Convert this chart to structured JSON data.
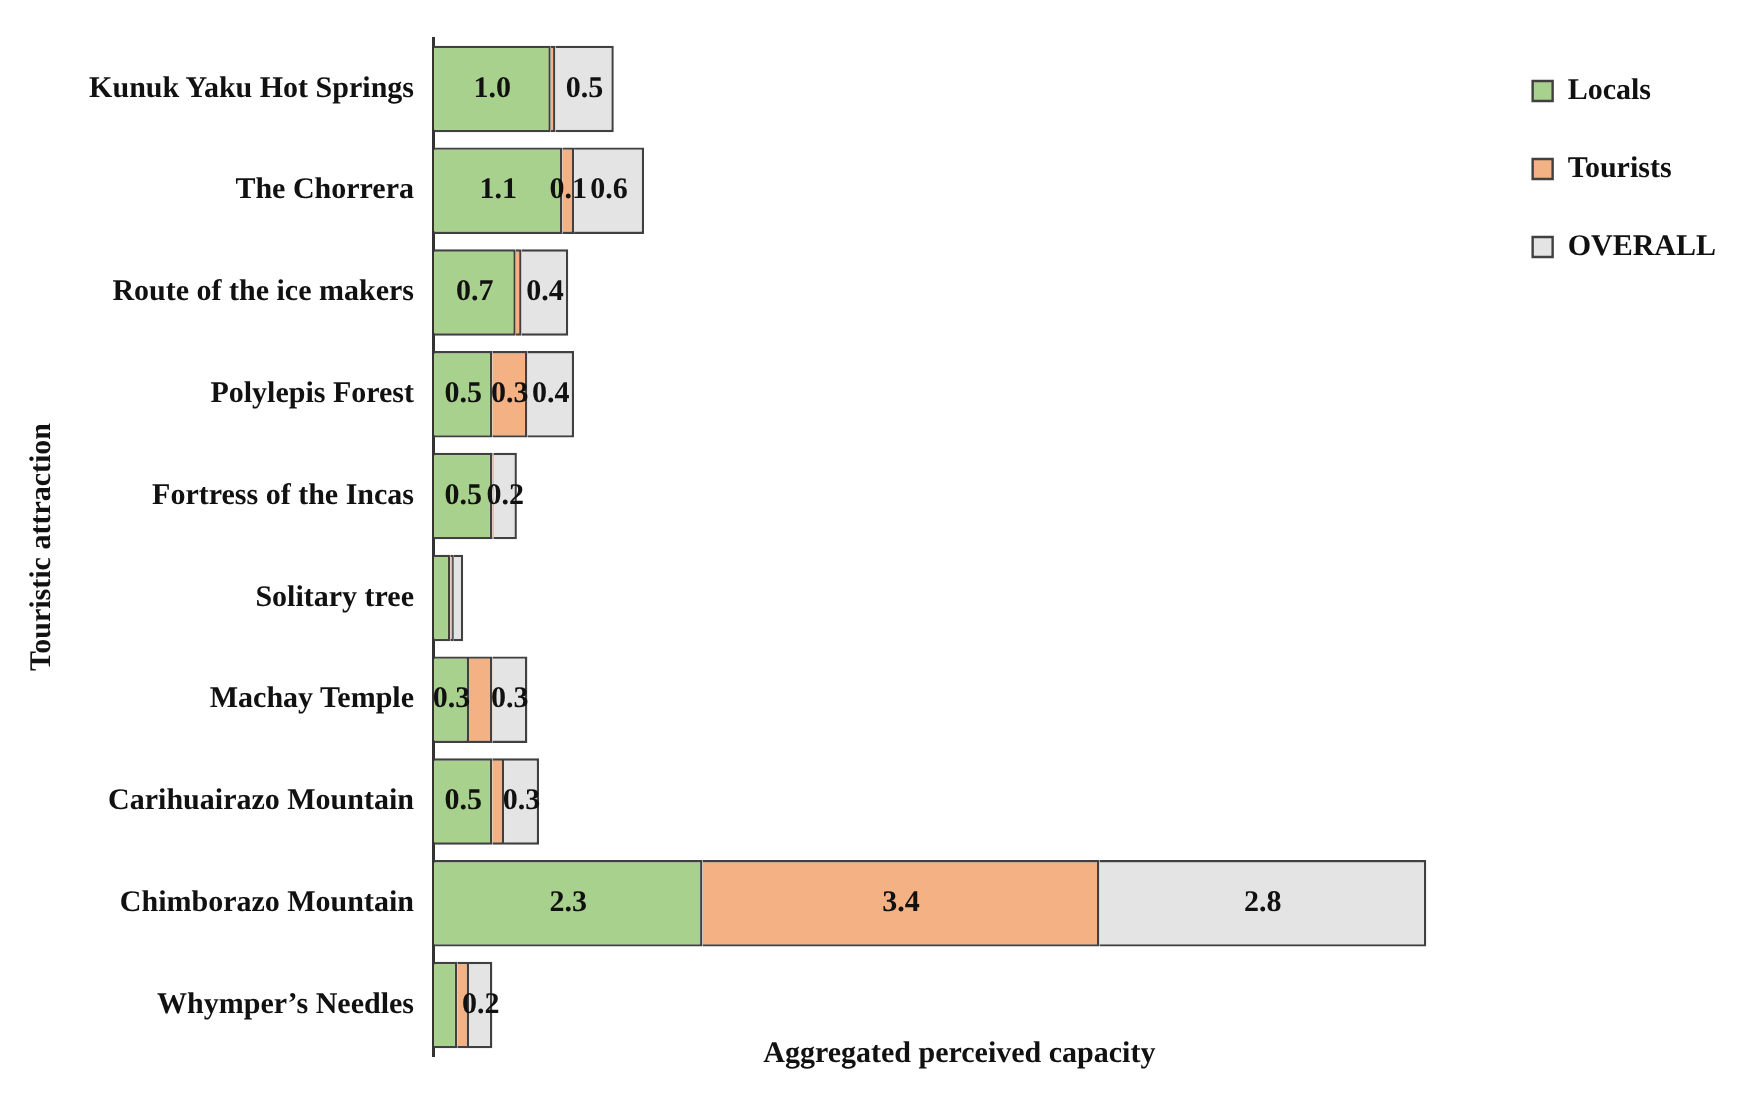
{
  "chart_data": {
    "type": "bar",
    "orientation": "horizontal",
    "stacked": true,
    "xlabel": "Aggregated perceived capacity",
    "ylabel": "Touristic attraction",
    "categories": [
      "Kunuk Yaku Hot Springs",
      "The Chorrera",
      "Route of the ice makers",
      "Polylepis Forest",
      "Fortress of the Incas",
      "Solitary tree",
      "Machay Temple",
      "Carihuairazo Mountain",
      "Chimborazo Mountain",
      "Whymper’s Needles"
    ],
    "series": [
      {
        "name": "Locals",
        "color": "#a9d18e",
        "values": [
          1.0,
          1.1,
          0.7,
          0.5,
          0.5,
          0.14,
          0.3,
          0.5,
          2.3,
          0.2
        ],
        "value_labels": [
          "1.0",
          "1.1",
          "0.7",
          "0.5",
          "0.5",
          null,
          "0.3",
          "0.5",
          "2.3",
          null
        ]
      },
      {
        "name": "Tourists",
        "color": "#f4b183",
        "values": [
          0.04,
          0.1,
          0.05,
          0.3,
          0.01,
          0.03,
          0.2,
          0.1,
          3.4,
          0.1
        ],
        "value_labels": [
          null,
          "0.1",
          null,
          "0.3",
          null,
          null,
          null,
          null,
          "3.4",
          null
        ]
      },
      {
        "name": "OVERALL",
        "color": "#e4e4e4",
        "values": [
          0.5,
          0.6,
          0.4,
          0.4,
          0.2,
          0.08,
          0.3,
          0.3,
          2.8,
          0.2
        ],
        "value_labels": [
          "0.5",
          "0.6",
          "0.4",
          "0.4",
          "0.2",
          null,
          "0.3",
          "0.3",
          "2.8",
          "0.2"
        ]
      }
    ],
    "legend": "top right"
  }
}
